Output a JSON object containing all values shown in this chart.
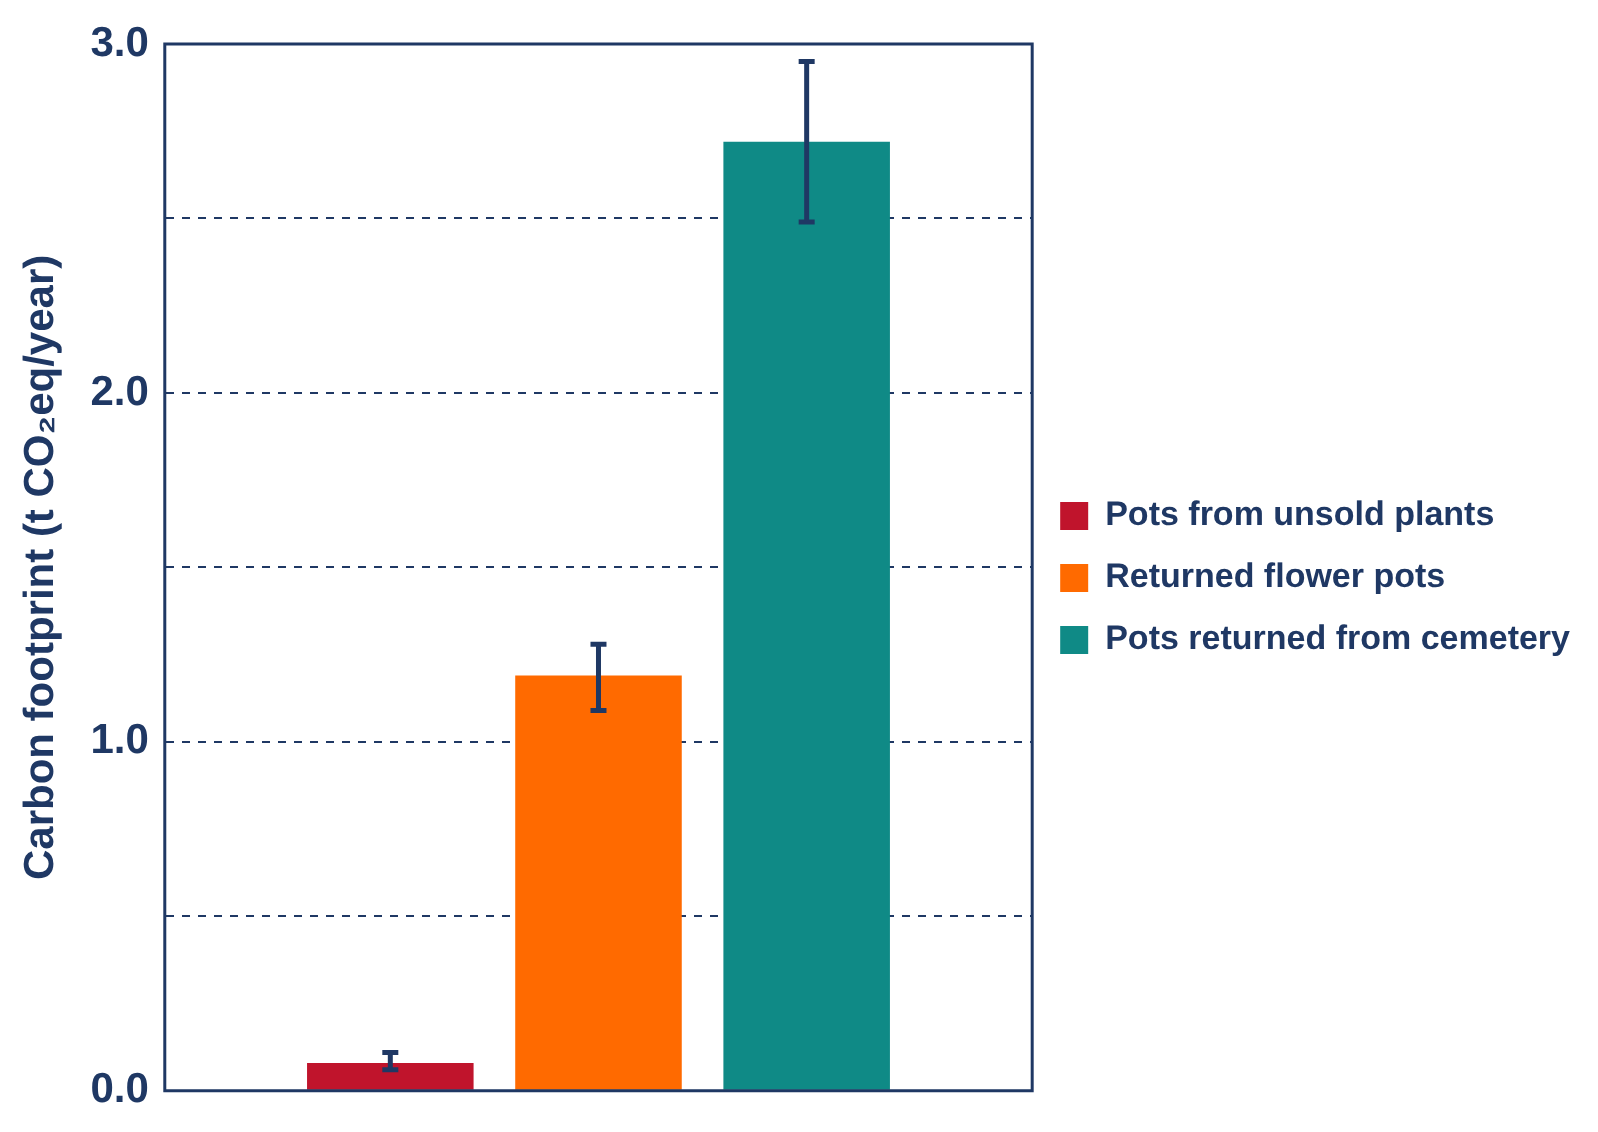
{
  "chart_data": {
    "type": "bar",
    "ylabel": "Carbon footprint (t CO₂eq/year)",
    "categories": [
      null
    ],
    "series": [
      {
        "name": "Pots from unsold plants",
        "color": "#c0142c",
        "values": [
          0.08
        ],
        "errors": [
          [
            0.06,
            0.11
          ]
        ]
      },
      {
        "name": "Returned flower pots",
        "color": "#ff6a00",
        "values": [
          1.19
        ],
        "errors": [
          [
            1.09,
            1.28
          ]
        ]
      },
      {
        "name": "Pots returned from cemetery",
        "color": "#0f8a86",
        "values": [
          2.72
        ],
        "errors": [
          [
            2.49,
            2.95
          ]
        ]
      }
    ],
    "ylim": [
      0,
      3
    ],
    "yticks": [
      {
        "value": 0,
        "label": "0.0"
      },
      {
        "value": 0.5,
        "label": null
      },
      {
        "value": 1,
        "label": "1.0"
      },
      {
        "value": 1.5,
        "label": null
      },
      {
        "value": 2,
        "label": "2.0"
      },
      {
        "value": 2.5,
        "label": null
      },
      {
        "value": 3,
        "label": "3.0"
      }
    ],
    "grid": "y",
    "legend": "right",
    "tick_labels": "y"
  }
}
